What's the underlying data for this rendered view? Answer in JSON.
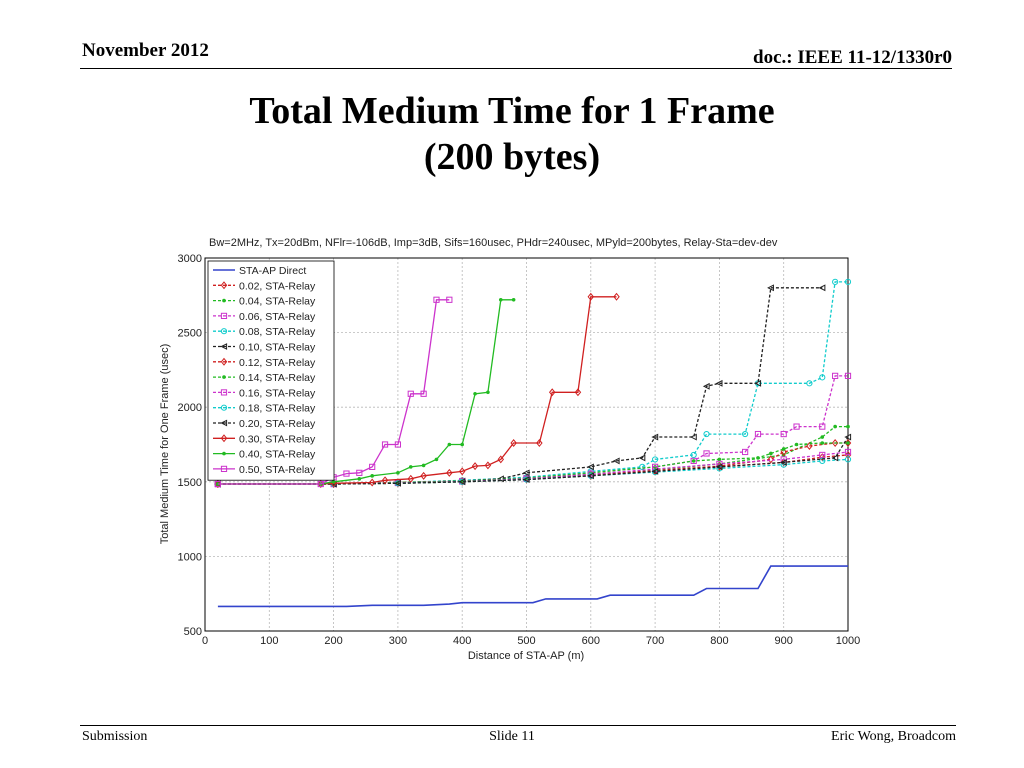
{
  "header": {
    "date": "November 2012",
    "doc": "doc.: IEEE 11-12/1330r0"
  },
  "slide": {
    "title_line1": "Total Medium Time for 1 Frame",
    "title_line2": "(200 bytes)"
  },
  "footer": {
    "left": "Submission",
    "center": "Slide 11",
    "right": "Eric Wong, Broadcom"
  },
  "chart_data": {
    "type": "line",
    "title": "Bw=2MHz, Tx=20dBm, NFlr=-106dB, Imp=3dB, Sifs=160usec, PHdr=240usec, MPyld=200bytes, Relay-Sta=dev-dev",
    "xlabel": "Distance of STA-AP (m)",
    "ylabel": "Total Medium Time for One Frame (usec)",
    "xlim": [
      0,
      1000
    ],
    "ylim": [
      500,
      3000
    ],
    "xticks": [
      0,
      100,
      200,
      300,
      400,
      500,
      600,
      700,
      800,
      900,
      1000
    ],
    "yticks": [
      500,
      1000,
      1500,
      2000,
      2500,
      3000
    ],
    "grid": true,
    "legend_position": "top-left",
    "series": [
      {
        "name": "STA-AP Direct",
        "color": "#3344cc",
        "marker": "none",
        "dash": "solid",
        "points": [
          [
            20,
            665
          ],
          [
            220,
            665
          ],
          [
            260,
            672
          ],
          [
            340,
            672
          ],
          [
            380,
            680
          ],
          [
            400,
            690
          ],
          [
            510,
            690
          ],
          [
            530,
            715
          ],
          [
            610,
            715
          ],
          [
            630,
            740
          ],
          [
            760,
            740
          ],
          [
            780,
            785
          ],
          [
            860,
            785
          ],
          [
            880,
            935
          ],
          [
            1000,
            935
          ]
        ]
      },
      {
        "name": "0.02, STA-Relay",
        "color": "#d02020",
        "marker": "diamond",
        "dash": "dashed",
        "points": [
          [
            20,
            1485
          ],
          [
            200,
            1485
          ],
          [
            300,
            1490
          ],
          [
            400,
            1500
          ],
          [
            500,
            1515
          ],
          [
            600,
            1540
          ],
          [
            700,
            1570
          ],
          [
            800,
            1600
          ],
          [
            900,
            1630
          ],
          [
            960,
            1665
          ],
          [
            1000,
            1680
          ]
        ]
      },
      {
        "name": "0.04, STA-Relay",
        "color": "#22bb22",
        "marker": "dot",
        "dash": "dashed",
        "points": [
          [
            20,
            1485
          ],
          [
            200,
            1485
          ],
          [
            300,
            1490
          ],
          [
            400,
            1500
          ],
          [
            500,
            1520
          ],
          [
            600,
            1550
          ],
          [
            700,
            1580
          ],
          [
            800,
            1620
          ],
          [
            900,
            1680
          ],
          [
            960,
            1800
          ],
          [
            980,
            1870
          ],
          [
            1000,
            1870
          ]
        ]
      },
      {
        "name": "0.06, STA-Relay",
        "color": "#cc33cc",
        "marker": "square",
        "dash": "dashed",
        "points": [
          [
            20,
            1485
          ],
          [
            200,
            1485
          ],
          [
            300,
            1495
          ],
          [
            400,
            1505
          ],
          [
            500,
            1525
          ],
          [
            600,
            1560
          ],
          [
            700,
            1600
          ],
          [
            760,
            1640
          ],
          [
            780,
            1690
          ],
          [
            840,
            1700
          ],
          [
            860,
            1820
          ],
          [
            900,
            1820
          ],
          [
            920,
            1870
          ],
          [
            960,
            1870
          ],
          [
            980,
            2210
          ],
          [
            1000,
            2210
          ]
        ]
      },
      {
        "name": "0.08, STA-Relay",
        "color": "#11cccc",
        "marker": "circle",
        "dash": "dashed",
        "points": [
          [
            20,
            1485
          ],
          [
            200,
            1485
          ],
          [
            300,
            1495
          ],
          [
            400,
            1510
          ],
          [
            500,
            1530
          ],
          [
            600,
            1570
          ],
          [
            680,
            1600
          ],
          [
            700,
            1650
          ],
          [
            760,
            1680
          ],
          [
            780,
            1820
          ],
          [
            840,
            1820
          ],
          [
            860,
            2160
          ],
          [
            940,
            2160
          ],
          [
            960,
            2200
          ],
          [
            980,
            2840
          ],
          [
            1000,
            2840
          ]
        ]
      },
      {
        "name": "0.10, STA-Relay",
        "color": "#222222",
        "marker": "triangle-left",
        "dash": "dashed",
        "points": [
          [
            20,
            1485
          ],
          [
            200,
            1485
          ],
          [
            300,
            1495
          ],
          [
            400,
            1505
          ],
          [
            460,
            1520
          ],
          [
            500,
            1560
          ],
          [
            600,
            1600
          ],
          [
            640,
            1640
          ],
          [
            680,
            1660
          ],
          [
            700,
            1800
          ],
          [
            760,
            1800
          ],
          [
            780,
            2140
          ],
          [
            800,
            2160
          ],
          [
            860,
            2160
          ],
          [
            880,
            2800
          ],
          [
            960,
            2800
          ]
        ]
      },
      {
        "name": "0.12, STA-Relay",
        "color": "#d02020",
        "marker": "diamond",
        "dash": "dashed",
        "points": [
          [
            20,
            1485
          ],
          [
            200,
            1485
          ],
          [
            300,
            1495
          ],
          [
            400,
            1505
          ],
          [
            500,
            1520
          ],
          [
            600,
            1545
          ],
          [
            700,
            1575
          ],
          [
            800,
            1605
          ],
          [
            880,
            1650
          ],
          [
            900,
            1700
          ],
          [
            940,
            1740
          ],
          [
            980,
            1760
          ],
          [
            1000,
            1760
          ]
        ]
      },
      {
        "name": "0.14, STA-Relay",
        "color": "#22bb22",
        "marker": "dot",
        "dash": "dashed",
        "points": [
          [
            20,
            1485
          ],
          [
            200,
            1485
          ],
          [
            300,
            1495
          ],
          [
            400,
            1505
          ],
          [
            500,
            1525
          ],
          [
            600,
            1560
          ],
          [
            700,
            1600
          ],
          [
            760,
            1640
          ],
          [
            800,
            1650
          ],
          [
            860,
            1660
          ],
          [
            880,
            1690
          ],
          [
            900,
            1720
          ],
          [
            920,
            1750
          ],
          [
            960,
            1760
          ],
          [
            1000,
            1760
          ]
        ]
      },
      {
        "name": "0.16, STA-Relay",
        "color": "#cc33cc",
        "marker": "square",
        "dash": "dashed",
        "points": [
          [
            20,
            1485
          ],
          [
            200,
            1485
          ],
          [
            300,
            1492
          ],
          [
            400,
            1502
          ],
          [
            500,
            1520
          ],
          [
            600,
            1550
          ],
          [
            700,
            1585
          ],
          [
            800,
            1620
          ],
          [
            900,
            1650
          ],
          [
            960,
            1680
          ],
          [
            1000,
            1700
          ]
        ]
      },
      {
        "name": "0.18, STA-Relay",
        "color": "#11cccc",
        "marker": "circle",
        "dash": "dashed",
        "points": [
          [
            20,
            1485
          ],
          [
            200,
            1485
          ],
          [
            300,
            1490
          ],
          [
            400,
            1500
          ],
          [
            500,
            1515
          ],
          [
            600,
            1540
          ],
          [
            700,
            1565
          ],
          [
            800,
            1590
          ],
          [
            900,
            1615
          ],
          [
            960,
            1640
          ],
          [
            1000,
            1650
          ]
        ]
      },
      {
        "name": "0.20, STA-Relay",
        "color": "#222222",
        "marker": "triangle-left",
        "dash": "dashed",
        "points": [
          [
            20,
            1485
          ],
          [
            200,
            1485
          ],
          [
            300,
            1490
          ],
          [
            400,
            1500
          ],
          [
            500,
            1515
          ],
          [
            600,
            1540
          ],
          [
            700,
            1570
          ],
          [
            800,
            1600
          ],
          [
            900,
            1630
          ],
          [
            980,
            1660
          ],
          [
            1000,
            1800
          ]
        ]
      },
      {
        "name": "0.30, STA-Relay",
        "color": "#d02020",
        "marker": "diamond",
        "dash": "solid",
        "points": [
          [
            20,
            1485
          ],
          [
            180,
            1485
          ],
          [
            200,
            1490
          ],
          [
            260,
            1495
          ],
          [
            280,
            1510
          ],
          [
            320,
            1520
          ],
          [
            340,
            1540
          ],
          [
            380,
            1560
          ],
          [
            400,
            1570
          ],
          [
            420,
            1605
          ],
          [
            440,
            1610
          ],
          [
            460,
            1650
          ],
          [
            480,
            1760
          ],
          [
            520,
            1760
          ],
          [
            540,
            2100
          ],
          [
            580,
            2100
          ],
          [
            600,
            2740
          ],
          [
            640,
            2740
          ]
        ]
      },
      {
        "name": "0.40, STA-Relay",
        "color": "#22bb22",
        "marker": "dot",
        "dash": "solid",
        "points": [
          [
            20,
            1485
          ],
          [
            180,
            1485
          ],
          [
            200,
            1500
          ],
          [
            240,
            1520
          ],
          [
            260,
            1540
          ],
          [
            300,
            1560
          ],
          [
            320,
            1600
          ],
          [
            340,
            1610
          ],
          [
            360,
            1650
          ],
          [
            380,
            1750
          ],
          [
            400,
            1750
          ],
          [
            420,
            2090
          ],
          [
            440,
            2100
          ],
          [
            460,
            2720
          ],
          [
            480,
            2720
          ]
        ]
      },
      {
        "name": "0.50, STA-Relay",
        "color": "#cc33cc",
        "marker": "square",
        "dash": "solid",
        "points": [
          [
            20,
            1485
          ],
          [
            180,
            1485
          ],
          [
            200,
            1530
          ],
          [
            220,
            1555
          ],
          [
            240,
            1560
          ],
          [
            260,
            1600
          ],
          [
            280,
            1750
          ],
          [
            300,
            1750
          ],
          [
            320,
            2090
          ],
          [
            340,
            2090
          ],
          [
            360,
            2720
          ],
          [
            380,
            2720
          ]
        ]
      }
    ]
  }
}
